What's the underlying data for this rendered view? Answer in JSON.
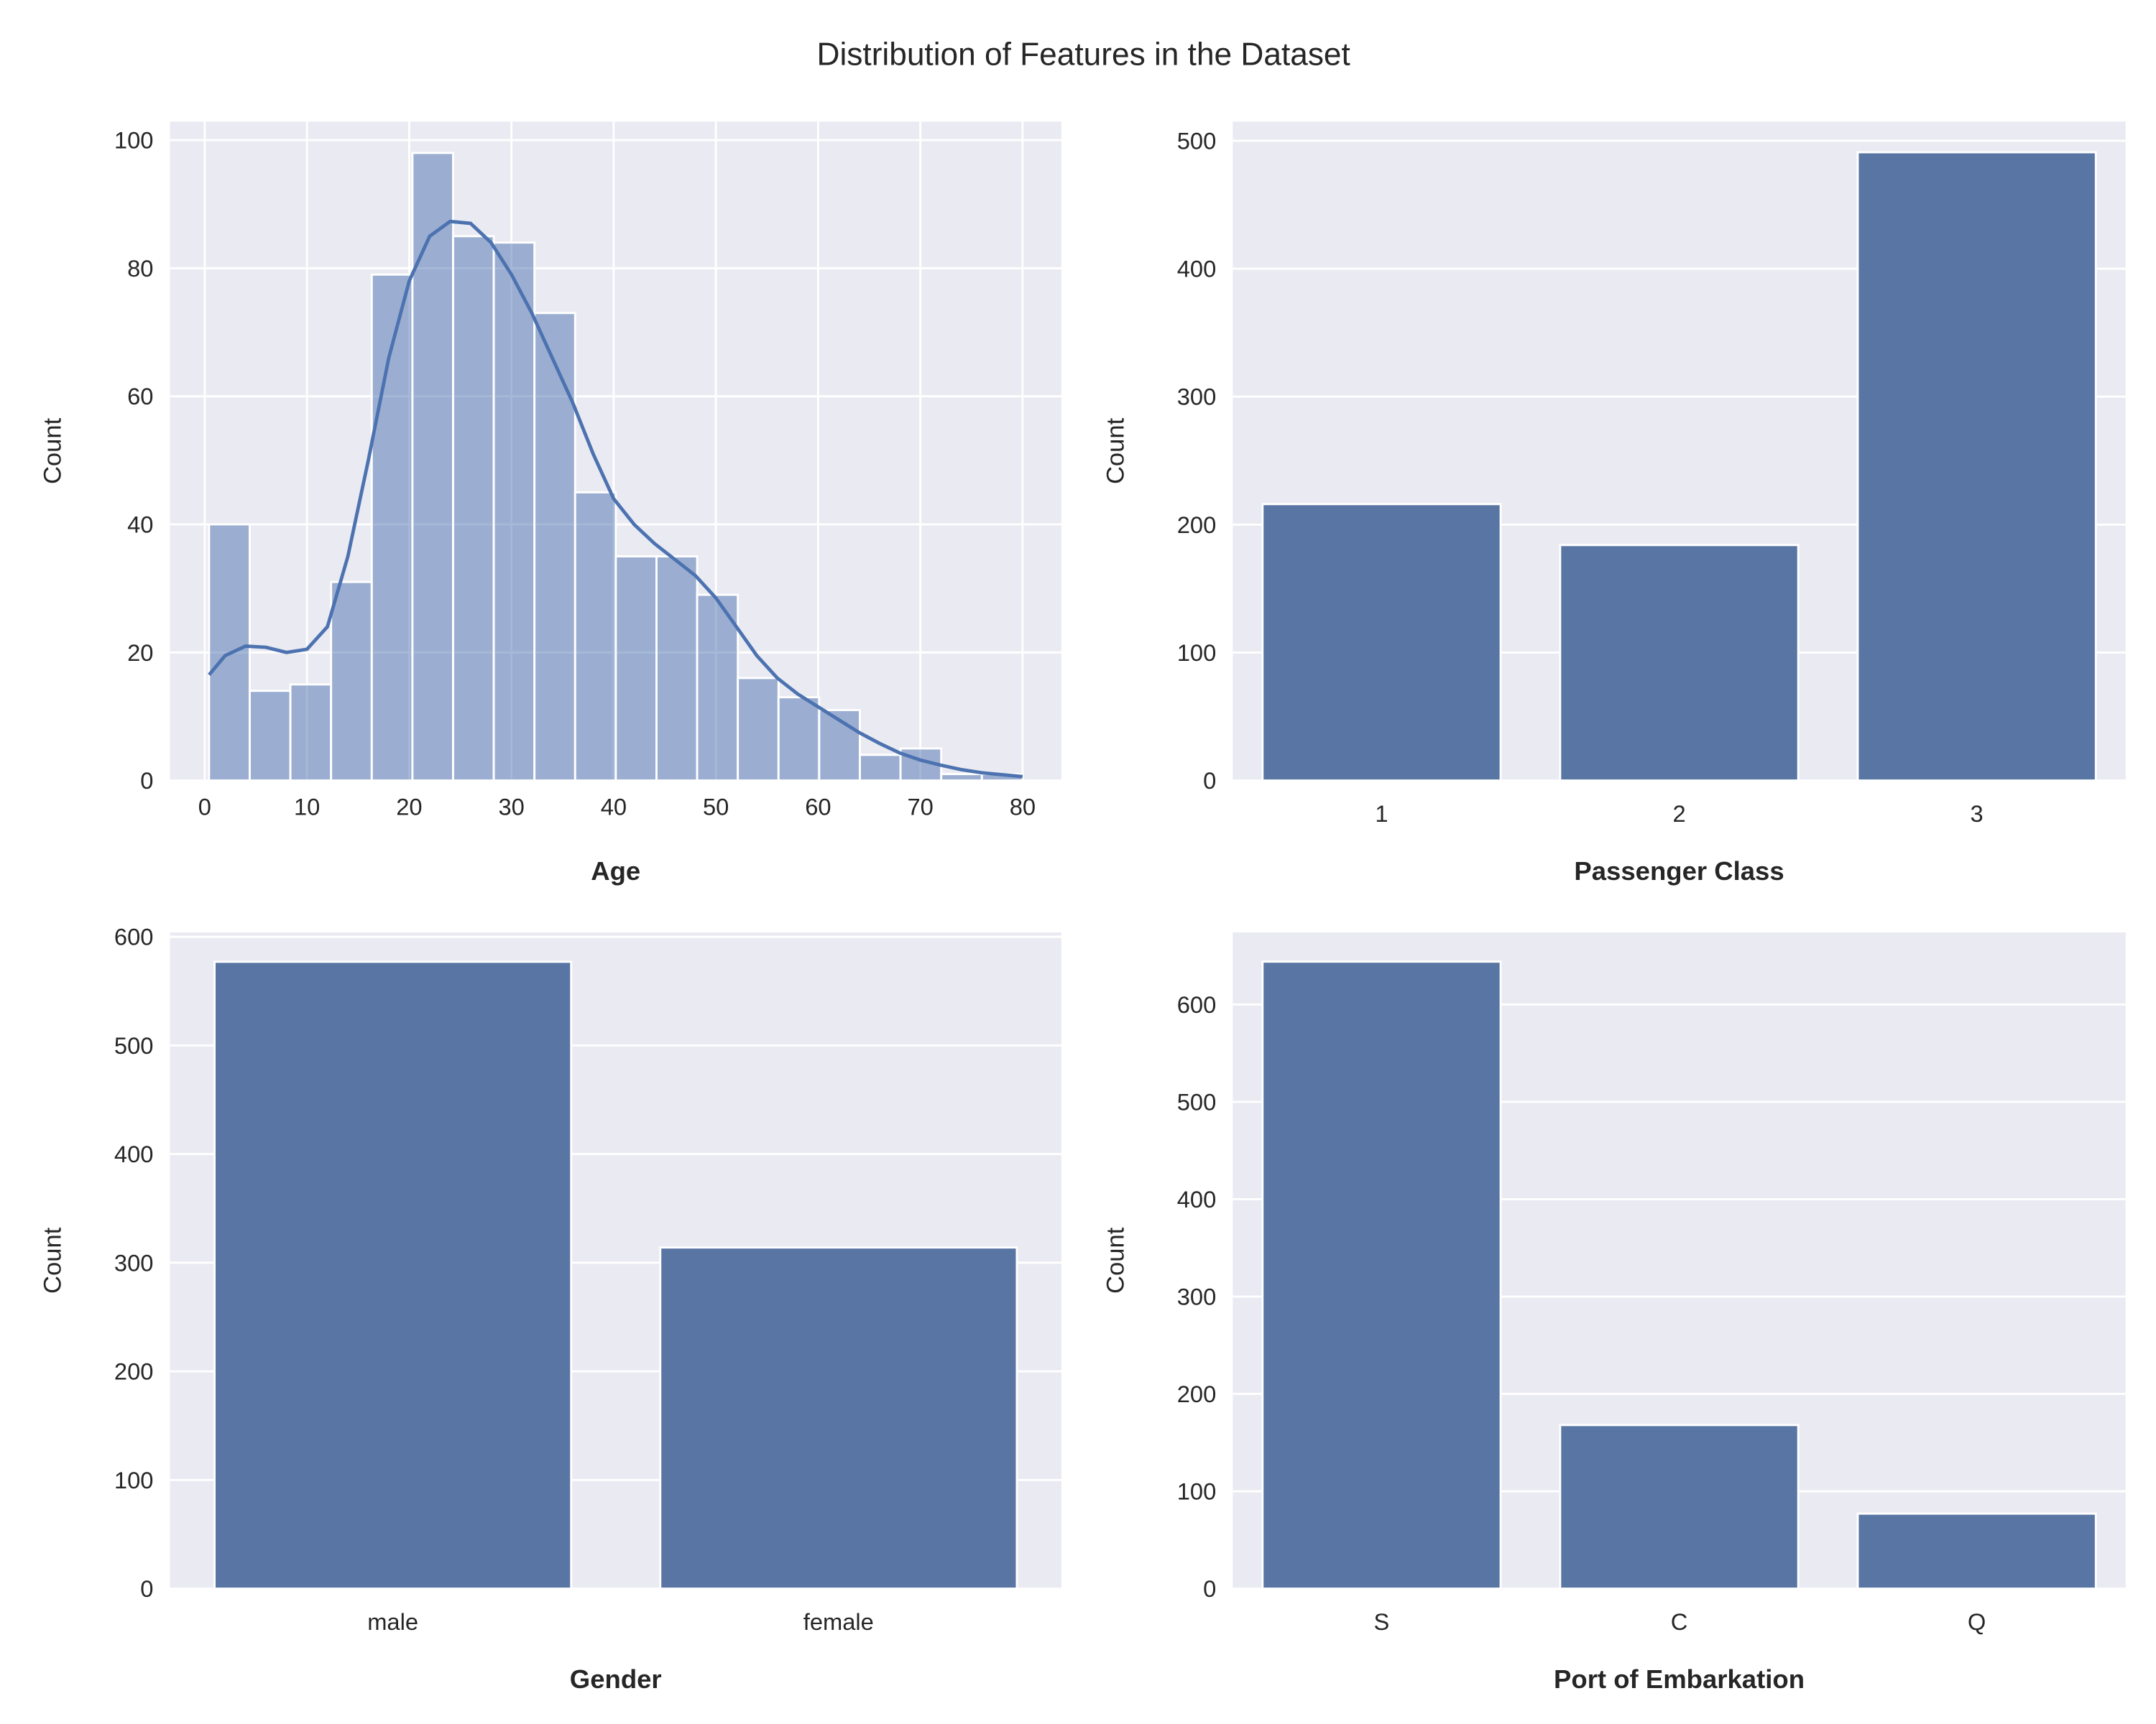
{
  "title": "Distribution of Features in the Dataset",
  "colors": {
    "bar": "#5875a4",
    "hist": "#4c72b0",
    "background": "#eaeaf2",
    "grid": "#ffffff"
  },
  "chart_data": [
    {
      "type": "bar",
      "subtype": "histogram",
      "xlabel": "Age",
      "ylabel": "Count",
      "bin_start": 0.42,
      "bin_width": 3.979,
      "values": [
        40,
        14,
        15,
        31,
        79,
        98,
        85,
        84,
        73,
        45,
        35,
        35,
        29,
        16,
        13,
        11,
        4,
        5,
        1,
        1
      ],
      "xlim": [
        -3.4,
        83.8
      ],
      "ylim": [
        0,
        102.9
      ],
      "xticks": [
        0,
        10,
        20,
        30,
        40,
        50,
        60,
        70,
        80
      ],
      "yticks": [
        0,
        20,
        40,
        60,
        80,
        100
      ],
      "kde": [
        [
          0.42,
          16.5
        ],
        [
          2,
          19.5
        ],
        [
          4,
          21
        ],
        [
          6,
          20.8
        ],
        [
          8,
          20
        ],
        [
          10,
          20.5
        ],
        [
          12,
          24
        ],
        [
          14,
          35
        ],
        [
          16,
          50
        ],
        [
          18,
          66
        ],
        [
          20,
          78
        ],
        [
          22,
          85
        ],
        [
          24,
          87.3
        ],
        [
          26,
          87
        ],
        [
          28,
          84
        ],
        [
          30,
          79
        ],
        [
          32,
          73
        ],
        [
          34,
          66
        ],
        [
          36,
          59
        ],
        [
          38,
          51
        ],
        [
          40,
          44
        ],
        [
          42,
          40
        ],
        [
          44,
          37
        ],
        [
          46,
          34.5
        ],
        [
          48,
          32
        ],
        [
          50,
          28.5
        ],
        [
          52,
          24
        ],
        [
          54,
          19.5
        ],
        [
          56,
          16
        ],
        [
          58,
          13.5
        ],
        [
          60,
          11.5
        ],
        [
          62,
          9.5
        ],
        [
          64,
          7.5
        ],
        [
          66,
          5.8
        ],
        [
          68,
          4.3
        ],
        [
          70,
          3.2
        ],
        [
          72,
          2.4
        ],
        [
          74,
          1.7
        ],
        [
          76,
          1.2
        ],
        [
          78,
          0.9
        ],
        [
          80,
          0.6
        ]
      ],
      "grid": true
    },
    {
      "type": "bar",
      "xlabel": "Passenger Class",
      "ylabel": "Count",
      "categories": [
        "1",
        "2",
        "3"
      ],
      "values": [
        216,
        184,
        491
      ],
      "ylim": [
        0,
        515
      ],
      "yticks": [
        0,
        100,
        200,
        300,
        400,
        500
      ],
      "grid": true
    },
    {
      "type": "bar",
      "xlabel": "Gender",
      "ylabel": "Count",
      "categories": [
        "male",
        "female"
      ],
      "values": [
        577,
        314
      ],
      "ylim": [
        0,
        604
      ],
      "yticks": [
        0,
        100,
        200,
        300,
        400,
        500,
        600
      ],
      "grid": true
    },
    {
      "type": "bar",
      "xlabel": "Port of Embarkation",
      "ylabel": "Count",
      "categories": [
        "S",
        "C",
        "Q"
      ],
      "values": [
        644,
        168,
        77
      ],
      "ylim": [
        0,
        674
      ],
      "yticks": [
        0,
        100,
        200,
        300,
        400,
        500,
        600
      ],
      "grid": true
    }
  ]
}
